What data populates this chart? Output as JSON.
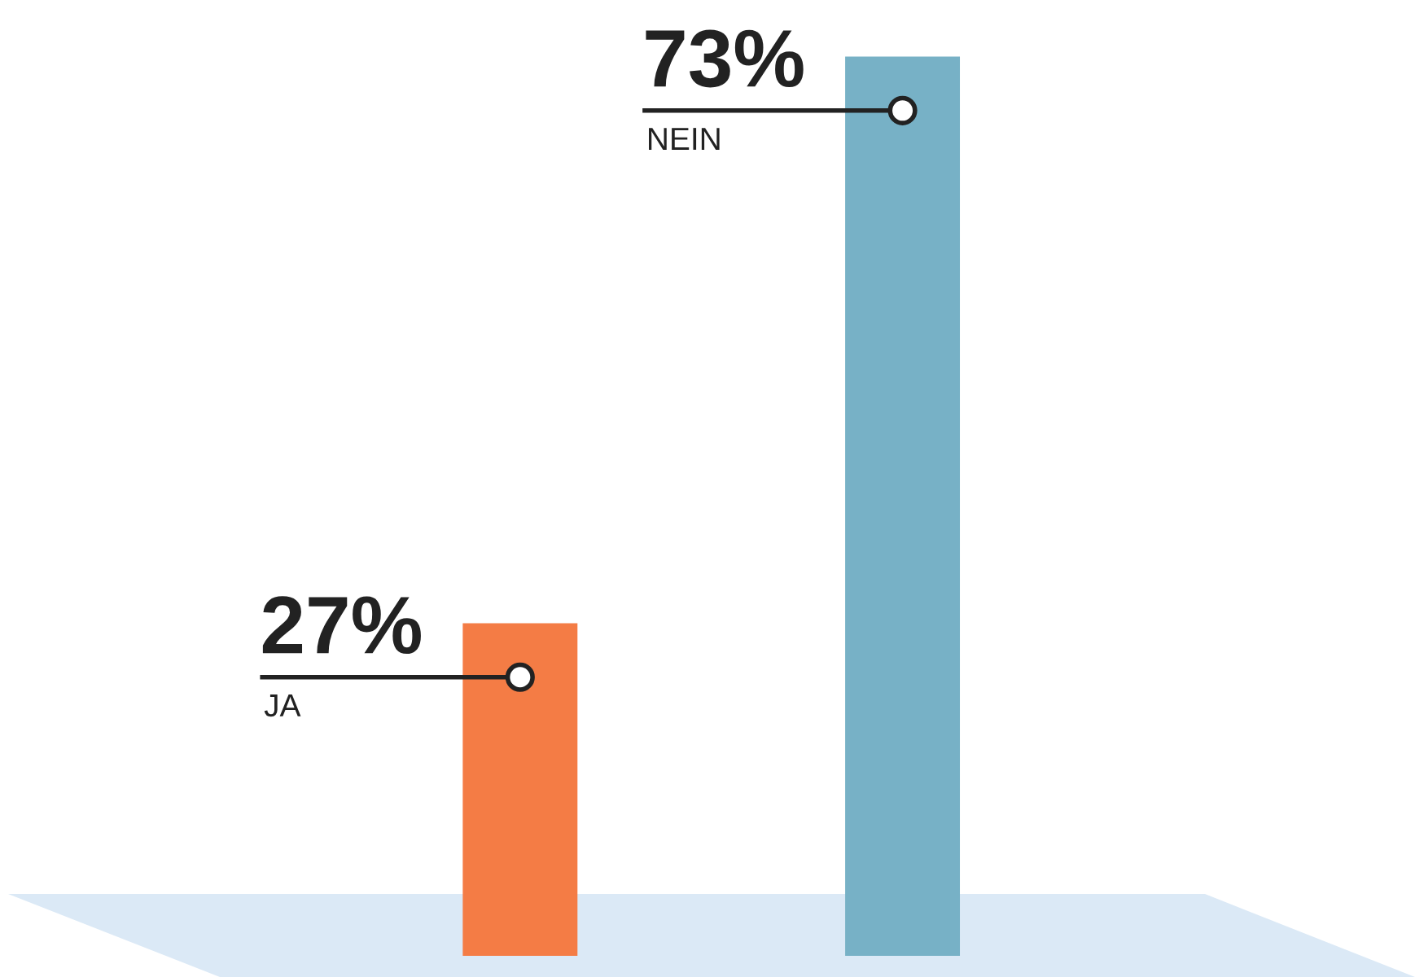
{
  "chart_data": {
    "type": "bar",
    "categories": [
      null,
      null
    ],
    "values": [
      27,
      73
    ],
    "colors": [
      "#f47c45",
      "#77b1c6"
    ],
    "value_labels": [
      "27%",
      "73%"
    ],
    "annotations": [
      "JA",
      "NEIN"
    ],
    "legend": false
  }
}
